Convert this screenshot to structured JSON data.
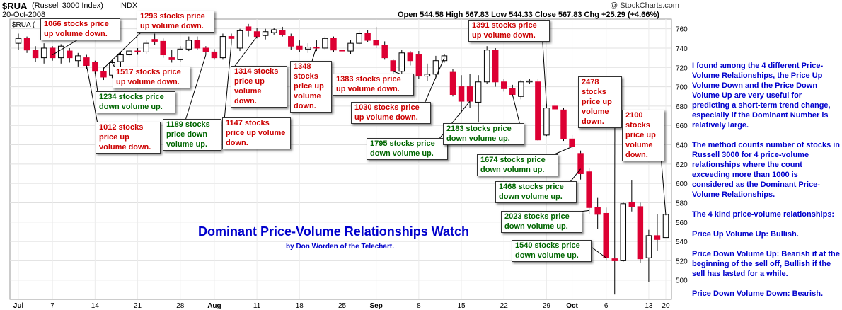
{
  "header": {
    "symbol": "$RUA",
    "index_name": "(Russell 3000 Index)",
    "exchange": "INDX",
    "date": "20-Oct-2008",
    "legend_label": "$RUA (",
    "copyright": "@ StockCharts.com",
    "ohlc": "Open 544.58  High 567.83  Low 544.33  Close 567.83  Chg +25.29 (+4.66%)"
  },
  "title": "Dominant Price-Volume Relationships Watch",
  "subtitle": "by Don Worden of the Telechart.",
  "notes": [
    "I found among the 4 different Price-Volume Relationships, the Price Up Volume Down and the Price Down Volume Up are very useful for predicting a short-term trend change, especially if the Dominant Number is relatively large.",
    "The method counts number of stocks in Russell 3000 for 4 price-volume relationships where the count exceeding more than 1000 is considered as the Dominant Price-Volume Relationships.",
    "The 4 kind price-volume relationships:",
    "Price Up Volume Up: Bullish.",
    "Price Down Volume Up: Bearish if at the beginning of the sell off, Bullish if the sell has lasted for a while.",
    "Price Down Volume Down: Bearish."
  ],
  "annotations": [
    {
      "text": "1066 stocks price up volume down.",
      "color": "red"
    },
    {
      "text": "1293 stocks price up volume down.",
      "color": "red"
    },
    {
      "text": "1517 stocks price up volume down.",
      "color": "red"
    },
    {
      "text": "1234 stocks price down volume up.",
      "color": "green"
    },
    {
      "text": "1012 stocks price up volume down.",
      "color": "red"
    },
    {
      "text": "1189 stocks price down volume up.",
      "color": "green"
    },
    {
      "text": "1147 stocks price up volume down.",
      "color": "red"
    },
    {
      "text": "1314 stocks price up volume down.",
      "color": "red"
    },
    {
      "text": "1348 stocks price up volume down.",
      "color": "red"
    },
    {
      "text": "1383 stocks price up volume down.",
      "color": "red"
    },
    {
      "text": "1030 stocks price up volume down.",
      "color": "red"
    },
    {
      "text": "1795 stocks price down volume up.",
      "color": "green"
    },
    {
      "text": "2183 stocks price down volume up.",
      "color": "green"
    },
    {
      "text": "1391 stocks price up volume down.",
      "color": "red"
    },
    {
      "text": "1674 stocks price down volumn up.",
      "color": "green"
    },
    {
      "text": "1468 stocks price down volume up.",
      "color": "green"
    },
    {
      "text": "2478 stocks price up volume down.",
      "color": "red"
    },
    {
      "text": "2023 stocks price down volume up.",
      "color": "green"
    },
    {
      "text": "1540 stocks price down volume up.",
      "color": "green"
    },
    {
      "text": "2100 stocks price up volume down.",
      "color": "red"
    }
  ],
  "chart_data": {
    "type": "candlestick",
    "ylim": [
      480,
      770
    ],
    "y_ticks": [
      500,
      520,
      540,
      560,
      580,
      600,
      620,
      640,
      660,
      680,
      700,
      720,
      740,
      760
    ],
    "x_tick_labels": [
      "Jul",
      "7",
      "14",
      "21",
      "28",
      "Aug",
      "11",
      "18",
      "25",
      "Sep",
      "8",
      "15",
      "22",
      "29",
      "Oct",
      "6",
      "13",
      "20"
    ],
    "up_color": "#ffffff",
    "down_color": "#dd0033",
    "candles": [
      {
        "o": 745,
        "h": 755,
        "l": 738,
        "c": 750
      },
      {
        "o": 750,
        "h": 752,
        "l": 735,
        "c": 738
      },
      {
        "o": 738,
        "h": 742,
        "l": 726,
        "c": 730
      },
      {
        "o": 730,
        "h": 745,
        "l": 724,
        "c": 740
      },
      {
        "o": 740,
        "h": 742,
        "l": 727,
        "c": 730
      },
      {
        "o": 730,
        "h": 744,
        "l": 724,
        "c": 742
      },
      {
        "o": 737,
        "h": 740,
        "l": 725,
        "c": 730
      },
      {
        "o": 727,
        "h": 735,
        "l": 721,
        "c": 732
      },
      {
        "o": 730,
        "h": 733,
        "l": 718,
        "c": 722
      },
      {
        "o": 725,
        "h": 727,
        "l": 713,
        "c": 716
      },
      {
        "o": 716,
        "h": 720,
        "l": 707,
        "c": 710
      },
      {
        "o": 712,
        "h": 728,
        "l": 709,
        "c": 725
      },
      {
        "o": 726,
        "h": 736,
        "l": 719,
        "c": 733
      },
      {
        "o": 733,
        "h": 739,
        "l": 730,
        "c": 737
      },
      {
        "o": 737,
        "h": 740,
        "l": 733,
        "c": 736
      },
      {
        "o": 736,
        "h": 748,
        "l": 734,
        "c": 745
      },
      {
        "o": 749,
        "h": 755,
        "l": 743,
        "c": 747
      },
      {
        "o": 747,
        "h": 750,
        "l": 730,
        "c": 733
      },
      {
        "o": 730,
        "h": 738,
        "l": 725,
        "c": 728
      },
      {
        "o": 728,
        "h": 742,
        "l": 726,
        "c": 739
      },
      {
        "o": 739,
        "h": 752,
        "l": 737,
        "c": 748
      },
      {
        "o": 748,
        "h": 752,
        "l": 738,
        "c": 740
      },
      {
        "o": 740,
        "h": 742,
        "l": 733,
        "c": 736
      },
      {
        "o": 736,
        "h": 739,
        "l": 728,
        "c": 730
      },
      {
        "o": 730,
        "h": 755,
        "l": 728,
        "c": 752
      },
      {
        "o": 752,
        "h": 755,
        "l": 745,
        "c": 750
      },
      {
        "o": 740,
        "h": 760,
        "l": 737,
        "c": 758
      },
      {
        "o": 762,
        "h": 765,
        "l": 752,
        "c": 758
      },
      {
        "o": 757,
        "h": 761,
        "l": 750,
        "c": 752
      },
      {
        "o": 753,
        "h": 760,
        "l": 749,
        "c": 757
      },
      {
        "o": 756,
        "h": 761,
        "l": 754,
        "c": 759
      },
      {
        "o": 758,
        "h": 762,
        "l": 752,
        "c": 754
      },
      {
        "o": 752,
        "h": 755,
        "l": 738,
        "c": 742
      },
      {
        "o": 742,
        "h": 748,
        "l": 736,
        "c": 739
      },
      {
        "o": 739,
        "h": 745,
        "l": 735,
        "c": 741
      },
      {
        "o": 741,
        "h": 748,
        "l": 737,
        "c": 740
      },
      {
        "o": 740,
        "h": 752,
        "l": 738,
        "c": 750
      },
      {
        "o": 750,
        "h": 752,
        "l": 736,
        "c": 738
      },
      {
        "o": 738,
        "h": 742,
        "l": 733,
        "c": 737
      },
      {
        "o": 737,
        "h": 748,
        "l": 734,
        "c": 745
      },
      {
        "o": 745,
        "h": 758,
        "l": 744,
        "c": 755
      },
      {
        "o": 755,
        "h": 759,
        "l": 746,
        "c": 748
      },
      {
        "o": 748,
        "h": 762,
        "l": 740,
        "c": 743
      },
      {
        "o": 743,
        "h": 747,
        "l": 728,
        "c": 730
      },
      {
        "o": 727,
        "h": 728,
        "l": 712,
        "c": 716
      },
      {
        "o": 716,
        "h": 738,
        "l": 713,
        "c": 735
      },
      {
        "o": 735,
        "h": 737,
        "l": 722,
        "c": 727
      },
      {
        "o": 733,
        "h": 737,
        "l": 708,
        "c": 711
      },
      {
        "o": 711,
        "h": 724,
        "l": 706,
        "c": 713
      },
      {
        "o": 713,
        "h": 732,
        "l": 709,
        "c": 727
      },
      {
        "o": 727,
        "h": 734,
        "l": 725,
        "c": 732
      },
      {
        "o": 715,
        "h": 718,
        "l": 690,
        "c": 692
      },
      {
        "o": 700,
        "h": 712,
        "l": 673,
        "c": 685
      },
      {
        "o": 700,
        "h": 713,
        "l": 678,
        "c": 685
      },
      {
        "o": 684,
        "h": 712,
        "l": 663,
        "c": 705
      },
      {
        "o": 705,
        "h": 742,
        "l": 703,
        "c": 738
      },
      {
        "o": 738,
        "h": 740,
        "l": 700,
        "c": 705
      },
      {
        "o": 705,
        "h": 708,
        "l": 695,
        "c": 698
      },
      {
        "o": 698,
        "h": 702,
        "l": 690,
        "c": 692
      },
      {
        "o": 690,
        "h": 707,
        "l": 687,
        "c": 705
      },
      {
        "o": 705,
        "h": 708,
        "l": 703,
        "c": 706
      },
      {
        "o": 705,
        "h": 708,
        "l": 644,
        "c": 645
      },
      {
        "o": 650,
        "h": 682,
        "l": 649,
        "c": 678
      },
      {
        "o": 680,
        "h": 684,
        "l": 677,
        "c": 677
      },
      {
        "o": 676,
        "h": 678,
        "l": 644,
        "c": 646
      },
      {
        "o": 646,
        "h": 650,
        "l": 636,
        "c": 638
      },
      {
        "o": 631,
        "h": 634,
        "l": 604,
        "c": 610
      },
      {
        "o": 612,
        "h": 616,
        "l": 568,
        "c": 575
      },
      {
        "o": 575,
        "h": 585,
        "l": 553,
        "c": 568
      },
      {
        "o": 569,
        "h": 575,
        "l": 520,
        "c": 523
      },
      {
        "o": 522,
        "h": 578,
        "l": 485,
        "c": 520
      },
      {
        "o": 520,
        "h": 581,
        "l": 519,
        "c": 579
      },
      {
        "o": 580,
        "h": 603,
        "l": 571,
        "c": 576
      },
      {
        "o": 576,
        "h": 580,
        "l": 518,
        "c": 522
      },
      {
        "o": 523,
        "h": 552,
        "l": 498,
        "c": 546
      },
      {
        "o": 546,
        "h": 568,
        "l": 530,
        "c": 542
      },
      {
        "o": 544,
        "h": 568,
        "l": 544,
        "c": 568
      }
    ]
  }
}
